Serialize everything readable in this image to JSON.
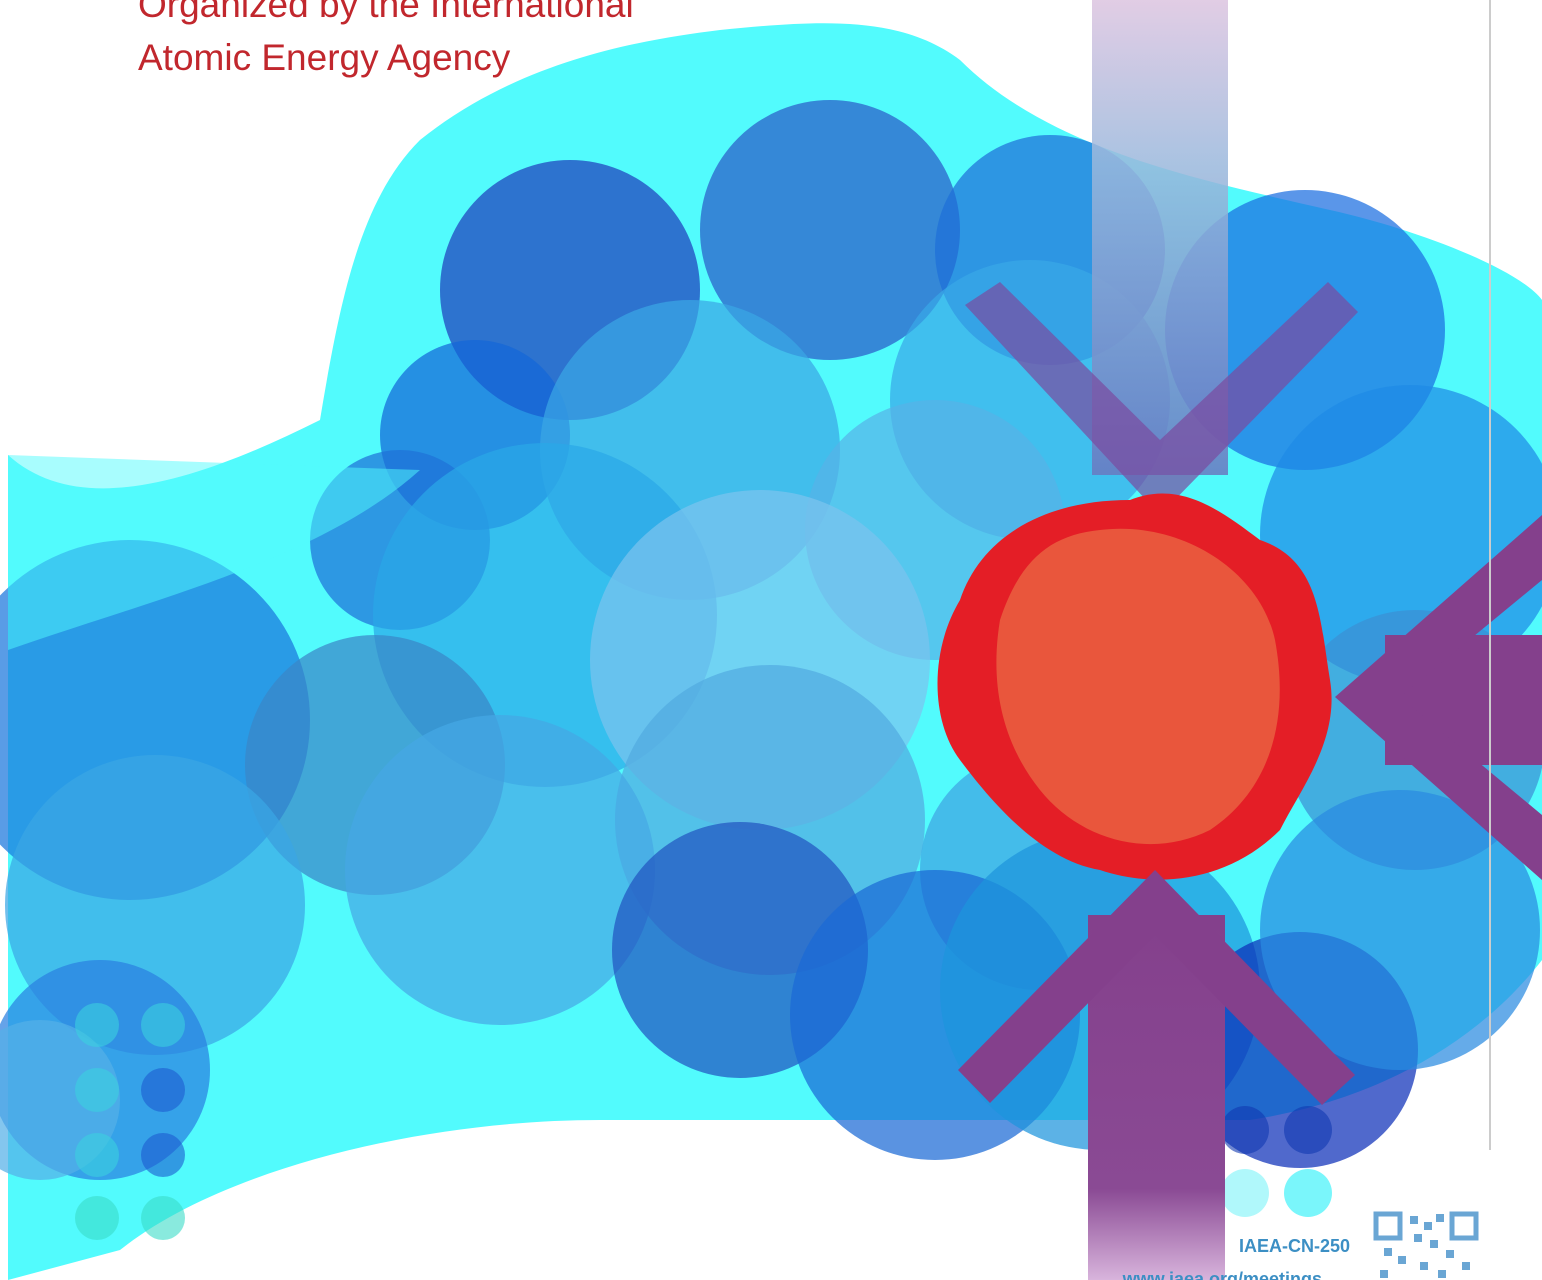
{
  "header": {
    "organizer_line1": "Organized by the International",
    "organizer_line2": "Atomic Energy Agency"
  },
  "footer": {
    "code": "IAEA-CN-250",
    "url": "www.iaea.org/meetings"
  }
}
